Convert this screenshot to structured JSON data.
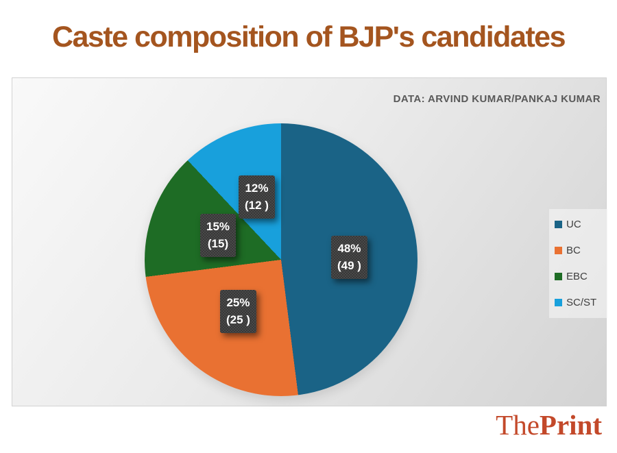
{
  "header": {
    "title": "Caste composition of BJP's candidates",
    "title_color": "#A4551F"
  },
  "chart": {
    "attribution": "DATA: ARVIND KUMAR/PANKAJ KUMAR"
  },
  "chart_data": {
    "type": "pie",
    "title": "Caste composition of BJP's candidates",
    "start_angle_deg": 0,
    "direction": "clockwise",
    "legend_position": "right",
    "slices": [
      {
        "name": "UC",
        "pct": 48,
        "count": 49,
        "pct_label": "48%",
        "count_label": "(49 )",
        "color": "#1A6386"
      },
      {
        "name": "BC",
        "pct": 25,
        "count": 25,
        "pct_label": "25%",
        "count_label": "(25 )",
        "color": "#E97132"
      },
      {
        "name": "EBC",
        "pct": 15,
        "count": 15,
        "pct_label": "15%",
        "count_label": "(15)",
        "color": "#1E6C25"
      },
      {
        "name": "SC/ST",
        "pct": 12,
        "count": 12,
        "pct_label": "12%",
        "count_label": "(12 )",
        "color": "#18A0DC"
      }
    ]
  },
  "branding": {
    "name_regular": "The",
    "name_bold": "Print",
    "color": "#C3492A"
  }
}
